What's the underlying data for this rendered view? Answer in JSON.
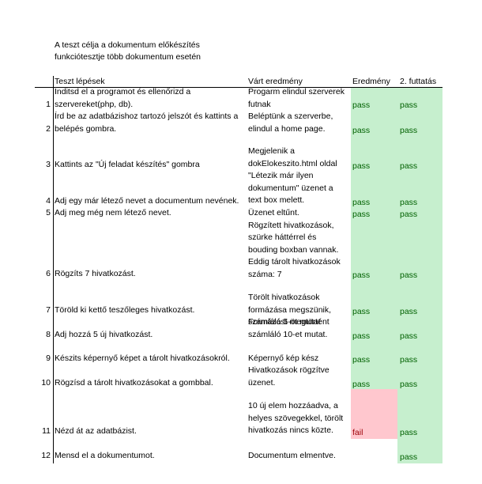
{
  "intro": [
    "A teszt célja a dokumentum előkészítés",
    "funkciótesztje több dokumentum esetén"
  ],
  "headers": {
    "steps": "Teszt lépések",
    "expected": "Várt eredmény",
    "result": "Eredmény",
    "second_run": "2. futtatás"
  },
  "rows": [
    {
      "num": "1",
      "step": [
        "Inditsd el a programot és ellenőrizd a",
        "szervereket(php, db)."
      ],
      "expected": [
        "Progarm elindul szerverek",
        "futnak"
      ],
      "result": "pass",
      "second": "pass"
    },
    {
      "num": "2",
      "step": [
        "Írd be az adatbázishoz tartozó jelszót és kattints a",
        "belépés gombra."
      ],
      "expected": [
        "Beléptünk a szerverbe,",
        "elindul a home page."
      ],
      "result": "pass",
      "second": "pass"
    },
    {
      "num": "3",
      "step": [
        "Kattints az \"Új feladat készítés\" gombra"
      ],
      "expected": [
        "Megjelenik a",
        "dokElokeszito.html oldal",
        "\"Létezik már ilyen",
        "dokumentum\" üzenet a",
        "text box melett."
      ],
      "result": "pass",
      "second": "pass"
    },
    {
      "num": "4",
      "step": [
        "Adj egy már létező nevet a documentum nevének."
      ],
      "expected": [],
      "result": "pass",
      "second": "pass"
    },
    {
      "num": "5",
      "step": [
        "Adj meg még nem létező nevet."
      ],
      "expected": [
        "Üzenet eltűnt.",
        "Rögzített hivatkozások,",
        "szürke háttérrel és",
        "bouding boxban vannak.",
        "Eddig tárolt hivatkozások",
        "száma: 7"
      ],
      "result": "pass",
      "second": "pass"
    },
    {
      "num": "6",
      "step": [
        "Rögzíts 7 hivatkozást."
      ],
      "expected": [],
      "result": "pass",
      "second": "pass"
    },
    {
      "num": "7",
      "step": [
        "Töröld ki kettő teszőleges hivatkozást."
      ],
      "expected": [
        "Törölt hivatkozások",
        "formázása megszünik,",
        "számláló 5-öt mutat"
      ],
      "result": "pass",
      "second": "pass"
    },
    {
      "num": "8",
      "step": [
        "Adj hozzá 5 új hivatkozást."
      ],
      "expected": [
        "Formázást megtörtént",
        "számláló 10-et mutat."
      ],
      "result": "pass",
      "second": "pass"
    },
    {
      "num": "9",
      "step": [
        "Készits képernyő képet a tárolt hivatkozásokról."
      ],
      "expected": [
        "Képernyő kép kész"
      ],
      "result": "pass",
      "second": "pass"
    },
    {
      "num": "10",
      "step": [
        "Rögzísd a tárolt hivatkozásokat a gombbal."
      ],
      "expected": [
        "Hivatkozások rögzítve",
        "üzenet."
      ],
      "result": "pass",
      "second": "pass"
    },
    {
      "num": "11",
      "step": [
        "Nézd át az adatbázist."
      ],
      "expected": [
        "10 új elem hozzáadva, a",
        "helyes szövegekkel, törölt",
        "hivatkozás nincs közte."
      ],
      "result": "fail",
      "second": "pass"
    },
    {
      "num": "12",
      "step": [
        "Mensd el a dokumentumot."
      ],
      "expected": [
        "Documentum elmentve."
      ],
      "result": "",
      "second": "pass"
    }
  ],
  "colors": {
    "pass_bg": "#c6efce",
    "pass_text": "#006100",
    "fail_bg": "#ffc7ce",
    "fail_text": "#9c0006"
  }
}
